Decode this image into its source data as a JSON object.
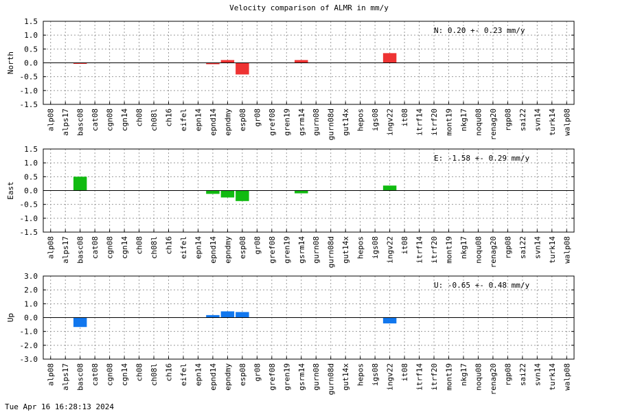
{
  "title": "Velocity comparison of ALMR in mm/y",
  "footer": "Tue Apr 16 16:28:13 2024",
  "chart_data": [
    {
      "type": "bar",
      "ylabel": "North",
      "color": "#ee3333",
      "ylim": [
        -1.5,
        1.5
      ],
      "yticks": [
        "1.5",
        "1.0",
        "0.5",
        "0.0",
        "-0.5",
        "-1.0",
        "-1.5"
      ],
      "annotation": "N:   0.20 +-  0.23 mm/y",
      "grid": true,
      "categories": [
        "alp08",
        "alps17",
        "basc08",
        "cat08",
        "cgn08",
        "cgn14",
        "ch08",
        "ch08l",
        "ch16",
        "eifel",
        "epn14",
        "epnd14",
        "epndmy",
        "esp08",
        "gr08",
        "gref08",
        "gren19",
        "gsrm14",
        "gurn08",
        "gurn08d",
        "gut14x",
        "hepos",
        "igs08",
        "ingv22",
        "it08",
        "itrf14",
        "itrf20",
        "mont19",
        "nkg17",
        "noqu08",
        "renag20",
        "rgp08",
        "sai22",
        "svn14",
        "turk14",
        "walp08"
      ],
      "values": [
        0,
        0,
        -0.03,
        0,
        0,
        0,
        0,
        0,
        0,
        0,
        0,
        -0.05,
        0.1,
        -0.42,
        0,
        0,
        0,
        0.1,
        0,
        0,
        0,
        0,
        0,
        0.35,
        0,
        0,
        0,
        0,
        0,
        0,
        0,
        0,
        0,
        0,
        0,
        0
      ]
    },
    {
      "type": "bar",
      "ylabel": "East",
      "color": "#11bb11",
      "ylim": [
        -1.5,
        1.5
      ],
      "yticks": [
        "1.5",
        "1.0",
        "0.5",
        "0.0",
        "-0.5",
        "-1.0",
        "-1.5"
      ],
      "annotation": "E:  -1.58 +-  0.29 mm/y",
      "grid": true,
      "categories": [
        "alp08",
        "alps17",
        "basc08",
        "cat08",
        "cgn08",
        "cgn14",
        "ch08",
        "ch08l",
        "ch16",
        "eifel",
        "epn14",
        "epnd14",
        "epndmy",
        "esp08",
        "gr08",
        "gref08",
        "gren19",
        "gsrm14",
        "gurn08",
        "gurn08d",
        "gut14x",
        "hepos",
        "igs08",
        "ingv22",
        "it08",
        "itrf14",
        "itrf20",
        "mont19",
        "nkg17",
        "noqu08",
        "renag20",
        "rgp08",
        "sai22",
        "svn14",
        "turk14",
        "walp08"
      ],
      "values": [
        0,
        0,
        0.5,
        0,
        0,
        0,
        0,
        0,
        0,
        0,
        0,
        -0.12,
        -0.25,
        -0.38,
        0,
        0,
        0,
        -0.1,
        0,
        0,
        0,
        0,
        0,
        0.18,
        0,
        0,
        0,
        0,
        0,
        0,
        0,
        0,
        0,
        0,
        0,
        0
      ]
    },
    {
      "type": "bar",
      "ylabel": "Up",
      "color": "#1177ee",
      "ylim": [
        -3.0,
        3.0
      ],
      "yticks": [
        "3.0",
        "2.0",
        "1.0",
        "0.0",
        "-1.0",
        "-2.0",
        "-3.0"
      ],
      "annotation": "U:  -0.65 +-  0.48 mm/y",
      "grid": true,
      "categories": [
        "alp08",
        "alps17",
        "basc08",
        "cat08",
        "cgn08",
        "cgn14",
        "ch08",
        "ch08l",
        "ch16",
        "eifel",
        "epn14",
        "epnd14",
        "epndmy",
        "esp08",
        "gr08",
        "gref08",
        "gren19",
        "gsrm14",
        "gurn08",
        "gurn08d",
        "gut14x",
        "hepos",
        "igs08",
        "ingv22",
        "it08",
        "itrf14",
        "itrf20",
        "mont19",
        "nkg17",
        "noqu08",
        "renag20",
        "rgp08",
        "sai22",
        "svn14",
        "turk14",
        "walp08"
      ],
      "values": [
        0,
        0,
        -0.68,
        0,
        0,
        0,
        0,
        0,
        0,
        0,
        0,
        0.18,
        0.45,
        0.4,
        0,
        0,
        0,
        0,
        0,
        0,
        0,
        0,
        0,
        -0.42,
        0,
        0,
        0,
        0,
        0,
        0,
        0,
        0,
        0,
        0,
        0,
        0
      ]
    }
  ]
}
